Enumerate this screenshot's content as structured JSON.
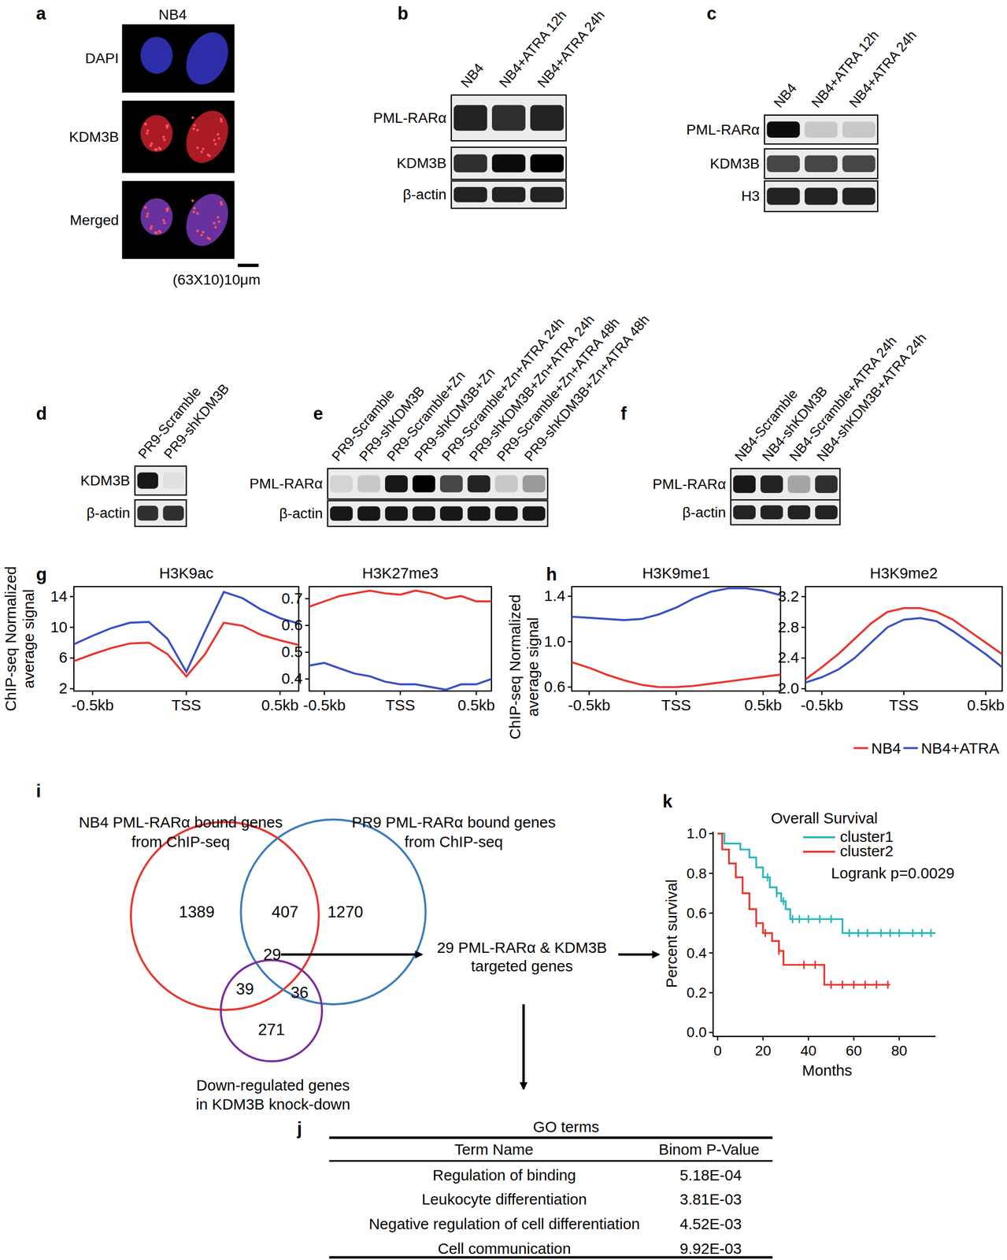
{
  "chart_data": [
    {
      "type": "line",
      "title": "H3K9ac",
      "x": [
        -0.6,
        -0.5,
        -0.4,
        -0.3,
        -0.2,
        -0.1,
        0,
        0.1,
        0.2,
        0.3,
        0.4,
        0.5,
        0.6
      ],
      "series": [
        {
          "color": "#e8352e",
          "values": [
            5.6,
            6.5,
            7.3,
            7.9,
            8.0,
            6.5,
            3.6,
            6.5,
            10.6,
            10.2,
            9.0,
            8.3,
            7.7
          ]
        },
        {
          "color": "#3a4fc4",
          "values": [
            7.8,
            8.9,
            9.9,
            10.6,
            10.7,
            8.5,
            4.2,
            9.5,
            14.6,
            13.8,
            12.3,
            11.2,
            10.5
          ]
        }
      ],
      "xlim": [
        -0.6,
        0.6
      ],
      "xticks": [
        {
          "value": -0.5,
          "label": "-0.5kb"
        },
        {
          "value": 0,
          "label": "TSS"
        },
        {
          "value": 0.5,
          "label": "0.5kb"
        }
      ],
      "ylim": [
        1.7,
        15.3
      ],
      "yticks": [
        2,
        6,
        10,
        14
      ]
    },
    {
      "type": "line",
      "title": "H3K27me3",
      "x": [
        -0.6,
        -0.5,
        -0.4,
        -0.3,
        -0.2,
        -0.1,
        0,
        0.1,
        0.2,
        0.3,
        0.4,
        0.5,
        0.6
      ],
      "series": [
        {
          "color": "#e8352e",
          "values": [
            0.67,
            0.69,
            0.71,
            0.72,
            0.73,
            0.72,
            0.715,
            0.73,
            0.72,
            0.7,
            0.71,
            0.69,
            0.69
          ]
        },
        {
          "color": "#3a4fc4",
          "values": [
            0.45,
            0.46,
            0.44,
            0.42,
            0.41,
            0.39,
            0.38,
            0.38,
            0.37,
            0.36,
            0.38,
            0.38,
            0.4
          ]
        }
      ],
      "xlim": [
        -0.6,
        0.6
      ],
      "xticks": [
        {
          "value": -0.5,
          "label": "-0.5kb"
        },
        {
          "value": 0,
          "label": "TSS"
        },
        {
          "value": 0.5,
          "label": "0.5kb"
        }
      ],
      "ylim": [
        0.355,
        0.745
      ],
      "yticks": [
        0.4,
        0.5,
        0.6,
        0.7
      ]
    },
    {
      "type": "line",
      "title": "H3K9me1",
      "x": [
        -0.6,
        -0.5,
        -0.4,
        -0.3,
        -0.2,
        -0.1,
        0,
        0.1,
        0.2,
        0.3,
        0.4,
        0.5,
        0.6
      ],
      "series": [
        {
          "color": "#e8352e",
          "values": [
            0.82,
            0.77,
            0.71,
            0.66,
            0.62,
            0.6,
            0.6,
            0.61,
            0.63,
            0.65,
            0.67,
            0.69,
            0.71
          ]
        },
        {
          "color": "#3a4fc4",
          "values": [
            1.22,
            1.21,
            1.2,
            1.19,
            1.2,
            1.24,
            1.3,
            1.38,
            1.44,
            1.47,
            1.47,
            1.45,
            1.41
          ]
        }
      ],
      "xlim": [
        -0.6,
        0.6
      ],
      "xticks": [
        {
          "value": -0.5,
          "label": "-0.5kb"
        },
        {
          "value": 0,
          "label": "TSS"
        },
        {
          "value": 0.5,
          "label": "0.5kb"
        }
      ],
      "ylim": [
        0.565,
        1.485
      ],
      "yticks": [
        0.6,
        {
          "value": 1,
          "label": "1.0"
        },
        1.4
      ]
    },
    {
      "type": "line",
      "title": "H3K9me2",
      "x": [
        -0.6,
        -0.5,
        -0.4,
        -0.3,
        -0.2,
        -0.1,
        0,
        0.1,
        0.2,
        0.3,
        0.4,
        0.5,
        0.6
      ],
      "series": [
        {
          "name": "NB4",
          "color": "#e8352e",
          "values": [
            2.12,
            2.28,
            2.45,
            2.65,
            2.85,
            3.0,
            3.05,
            3.05,
            3.0,
            2.9,
            2.75,
            2.6,
            2.45
          ]
        },
        {
          "name": "NB4+ATRA",
          "color": "#3a4fc4",
          "values": [
            2.08,
            2.15,
            2.25,
            2.4,
            2.6,
            2.8,
            2.9,
            2.92,
            2.88,
            2.75,
            2.6,
            2.45,
            2.28
          ]
        }
      ],
      "legend": "lower right",
      "xlim": [
        -0.6,
        0.6
      ],
      "xticks": [
        {
          "value": -0.5,
          "label": "-0.5kb"
        },
        {
          "value": 0,
          "label": "TSS"
        },
        {
          "value": 0.5,
          "label": "0.5kb"
        }
      ],
      "ylim": [
        1.97,
        3.33
      ],
      "yticks": [
        {
          "value": 2,
          "label": "2.0"
        },
        2.4,
        2.8,
        3.2
      ]
    },
    {
      "type": "step",
      "title": "Overall Survival",
      "x_label": "Months",
      "y_label": "Percent survival",
      "annotation": "Logrank p=0.0029",
      "legend": "upper right",
      "marker": "tick",
      "series": [
        {
          "name": "cluster1",
          "color": "#2ab7b8",
          "x": [
            0,
            3,
            10,
            14,
            17,
            20,
            23,
            26,
            28,
            30,
            32,
            55,
            96
          ],
          "values": [
            1,
            0.95,
            0.92,
            0.88,
            0.83,
            0.78,
            0.73,
            0.7,
            0.66,
            0.62,
            0.57,
            0.5,
            0.5
          ],
          "censor_x": [
            22,
            26,
            29,
            33,
            36,
            40,
            45,
            50,
            58,
            62,
            66,
            72,
            76,
            80,
            86,
            90,
            94
          ]
        },
        {
          "name": "cluster2",
          "color": "#e8352e",
          "x": [
            0,
            2,
            5,
            8,
            11,
            14,
            17,
            20,
            24,
            27,
            29,
            47,
            76
          ],
          "values": [
            1,
            0.92,
            0.85,
            0.78,
            0.7,
            0.62,
            0.55,
            0.5,
            0.46,
            0.41,
            0.34,
            0.24,
            0.24
          ],
          "censor_x": [
            17,
            21,
            27,
            38,
            43,
            50,
            55,
            60,
            65,
            70,
            75
          ]
        }
      ],
      "xlim": [
        -2,
        96
      ],
      "xticks": [
        0,
        20,
        40,
        60,
        80
      ],
      "ylim": [
        -0.02,
        1.01
      ],
      "yticks": [
        {
          "value": 0,
          "label": "0.0"
        },
        0.2,
        0.4,
        0.6,
        0.8,
        {
          "value": 1,
          "label": "1.0"
        }
      ]
    }
  ],
  "panels": {
    "a": {
      "label": "a",
      "title": "NB4",
      "rows": [
        "DAPI",
        "KDM3B",
        "Merged"
      ],
      "scale_bar": "(63X10)10μm"
    },
    "blots": [
      {
        "label": "b",
        "lanes": [
          "NB4",
          "NB4+ATRA 12h",
          "NB4+ATRA 24h"
        ],
        "rows": [
          {
            "name": "PML-RARα",
            "intensity": [
              0.85,
              0.8,
              0.85
            ]
          },
          {
            "name": "KDM3B",
            "intensity": [
              0.8,
              0.95,
              1.0
            ]
          },
          {
            "name": "β-actin",
            "intensity": [
              0.85,
              0.85,
              0.85
            ]
          }
        ]
      },
      {
        "label": "c",
        "lanes": [
          "NB4",
          "NB4+ATRA 12h",
          "NB4+ATRA 24h"
        ],
        "rows": [
          {
            "name": "PML-RARα",
            "intensity": [
              0.95,
              0.15,
              0.15
            ]
          },
          {
            "name": "KDM3B",
            "intensity": [
              0.7,
              0.7,
              0.7
            ]
          },
          {
            "name": "H3",
            "intensity": [
              0.85,
              0.85,
              0.85
            ]
          }
        ]
      },
      {
        "label": "d",
        "lanes": [
          "PR9-Scramble",
          "PR9-shKDM3B"
        ],
        "rows": [
          {
            "name": "KDM3B",
            "intensity": [
              0.9,
              0.05
            ]
          },
          {
            "name": "β-actin",
            "intensity": [
              0.8,
              0.8
            ]
          }
        ]
      },
      {
        "label": "e",
        "lanes": [
          "PR9-Scramble",
          "PR9-shKDM3B",
          "PR9-Scramble+Zn",
          "PR9-shKDM3B+Zn",
          "PR9-Scramble+Zn+ATRA 24h",
          "PR9-shKDM3B+Zn+ATRA 24h",
          "PR9-Scramble+Zn+ATRA 48h",
          "PR9-shKDM3B+Zn+ATRA 48h"
        ],
        "rows": [
          {
            "name": "PML-RARα",
            "intensity": [
              0.1,
              0.15,
              0.9,
              1.0,
              0.7,
              0.85,
              0.15,
              0.35
            ]
          },
          {
            "name": "β-actin",
            "intensity": [
              0.9,
              0.9,
              0.9,
              0.9,
              0.9,
              0.9,
              0.9,
              0.9
            ]
          }
        ]
      },
      {
        "label": "f",
        "lanes": [
          "NB4-Scramble",
          "NB4-shKDM3B",
          "NB4-Scramble+ATRA 24h",
          "NB4-shKDM3B+ATRA 24h"
        ],
        "rows": [
          {
            "name": "PML-RARα",
            "intensity": [
              0.9,
              0.85,
              0.3,
              0.8
            ]
          },
          {
            "name": "β-actin",
            "intensity": [
              0.85,
              0.85,
              0.85,
              0.85
            ]
          }
        ]
      }
    ],
    "g": {
      "label": "g",
      "y_label_lines": [
        "ChIP-seq Normalized",
        "average signal"
      ]
    },
    "h": {
      "label": "h",
      "y_label_lines": [
        "ChIP-seq Normalized",
        "average signal"
      ]
    },
    "i": {
      "label": "i",
      "sets": [
        {
          "label_lines": [
            "NB4 PML-RARα bound genes",
            "from ChIP-seq"
          ],
          "color": "#e8352e"
        },
        {
          "label_lines": [
            "PR9 PML-RARα bound genes",
            "from ChIP-seq"
          ],
          "color": "#3b7bbf"
        },
        {
          "label_lines": [
            "Down-regulated genes",
            "in KDM3B knock-down"
          ],
          "color": "#7a2ca0"
        }
      ],
      "regions": [
        1389,
        407,
        1270,
        29,
        39,
        36,
        271
      ],
      "result_lines": [
        "29 PML-RARα & KDM3B",
        "targeted genes"
      ]
    },
    "j": {
      "label": "j",
      "title": "GO terms",
      "header": [
        "Term Name",
        "Binom P-Value"
      ],
      "rows": [
        [
          "Regulation of binding",
          "5.18E-04"
        ],
        [
          "Leukocyte differentiation",
          "3.81E-03"
        ],
        [
          "Negative regulation of cell differentiation",
          "4.52E-03"
        ],
        [
          "Cell communication",
          "9.92E-03"
        ]
      ]
    },
    "k": {
      "label": "k"
    }
  }
}
